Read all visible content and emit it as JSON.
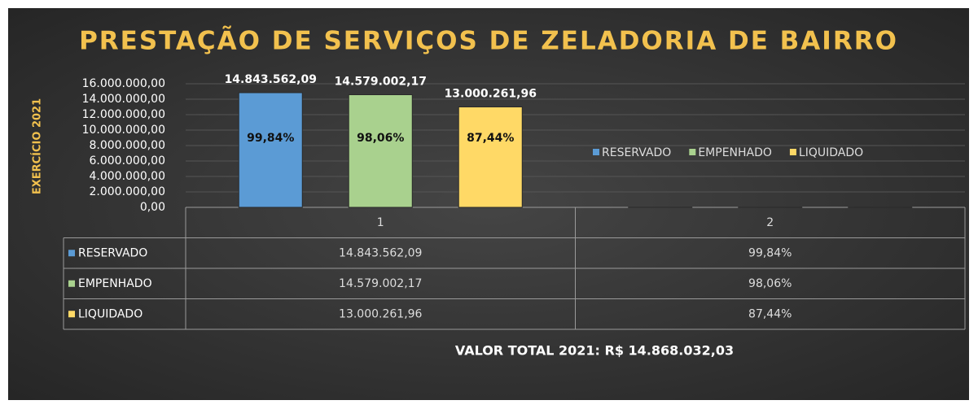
{
  "chart_data": {
    "type": "bar",
    "title": "PRESTAÇÃO DE SERVIÇOS DE ZELADORIA DE BAIRRO",
    "y_axis_label": "EXERCÍCIO 2021",
    "footer": "VALOR TOTAL 2021: R$ 14.868.032,03",
    "categories": [
      "1",
      "2"
    ],
    "series": [
      {
        "name": "RESERVADO",
        "color": "#5b9bd5",
        "values": [
          14843562.09,
          99.84
        ],
        "value_labels": [
          "14.843.562,09",
          "99,84%"
        ]
      },
      {
        "name": "EMPENHADO",
        "color": "#a9d18e",
        "values": [
          14579002.17,
          98.06
        ],
        "value_labels": [
          "14.579.002,17",
          "98,06%"
        ]
      },
      {
        "name": "LIQUIDADO",
        "color": "#ffd966",
        "values": [
          13000261.96,
          87.44
        ],
        "value_labels": [
          "13.000.261,96",
          "87,44%"
        ]
      }
    ],
    "ylim": [
      0,
      16000000
    ],
    "yticks": [
      {
        "value": 0,
        "label": "0,00"
      },
      {
        "value": 2000000,
        "label": "2.000.000,00"
      },
      {
        "value": 4000000,
        "label": "4.000.000,00"
      },
      {
        "value": 6000000,
        "label": "6.000.000,00"
      },
      {
        "value": 8000000,
        "label": "8.000.000,00"
      },
      {
        "value": 10000000,
        "label": "10.000.000,00"
      },
      {
        "value": 12000000,
        "label": "12.000.000,00"
      },
      {
        "value": 14000000,
        "label": "14.000.000,00"
      },
      {
        "value": 16000000,
        "label": "16.000.000,00"
      }
    ],
    "grid": true,
    "legend": "right"
  }
}
